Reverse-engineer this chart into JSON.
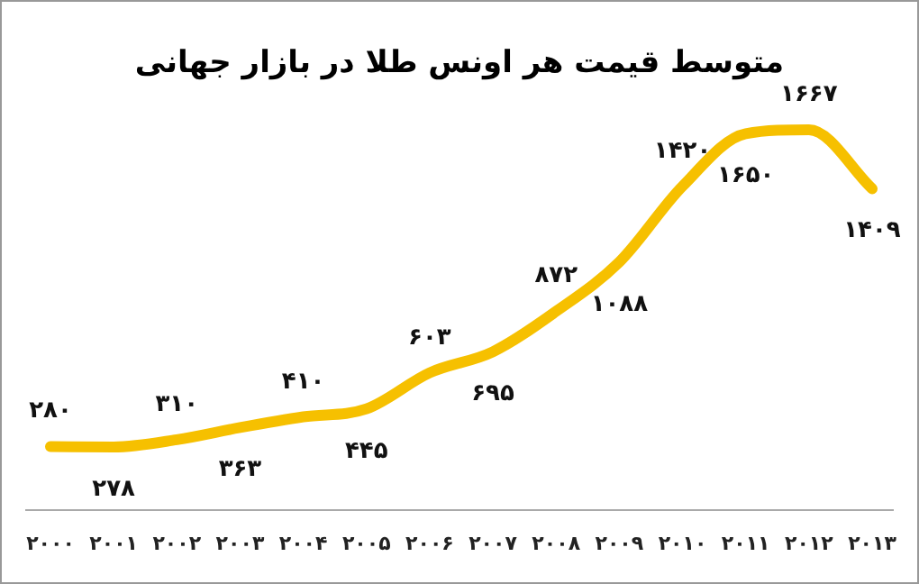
{
  "chart_data": {
    "type": "line",
    "title": "متوسط قیمت هر اونس طلا در بازار جهانی",
    "categories": [
      "۲۰۰۰",
      "۲۰۰۱",
      "۲۰۰۲",
      "۲۰۰۳",
      "۲۰۰۴",
      "۲۰۰۵",
      "۲۰۰۶",
      "۲۰۰۷",
      "۲۰۰۸",
      "۲۰۰۹",
      "۲۰۱۰",
      "۲۰۱۱",
      "۲۰۱۲",
      "۲۰۱۳"
    ],
    "series": [
      {
        "color": "#f6c000",
        "values": [
          280,
          278,
          310,
          363,
          410,
          445,
          603,
          695,
          872,
          1088,
          1420,
          1650,
          1667,
          1409
        ],
        "value_labels": [
          "۲۸۰",
          "۲۷۸",
          "۳۱۰",
          "۳۶۳",
          "۴۱۰",
          "۴۴۵",
          "۶۰۳",
          "۶۹۵",
          "۸۷۲",
          "۱۰۸۸",
          "۱۴۲۰",
          "۱۶۵۰",
          "۱۶۶۷",
          "۱۴۰۹"
        ]
      }
    ],
    "marker": "none",
    "line_style": "solid",
    "grid": false
  }
}
